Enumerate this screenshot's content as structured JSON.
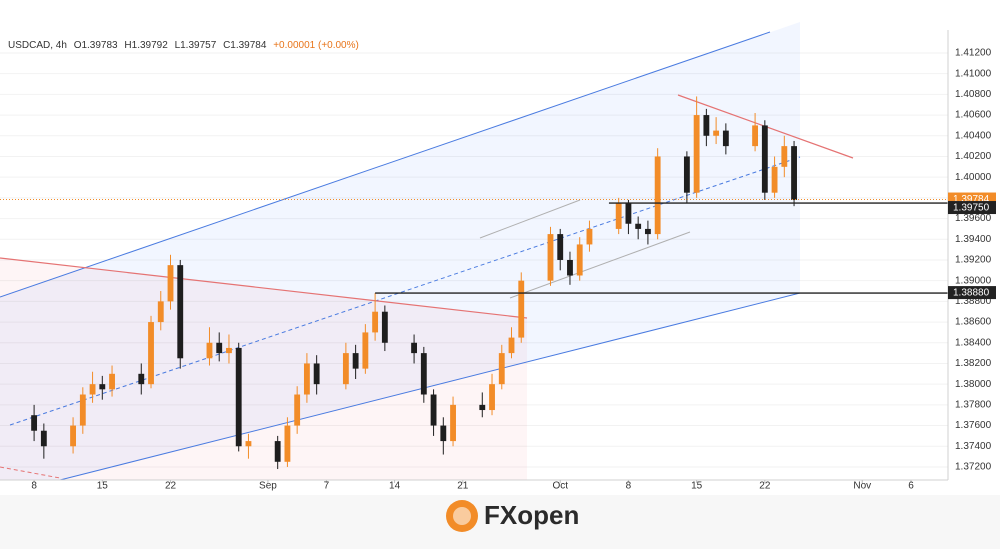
{
  "chart_data": {
    "type": "candlestick",
    "header": {
      "symbol": "USDCAD, 4h",
      "open": "O1.39783",
      "high": "H1.39792",
      "low": "L1.39757",
      "close": "C1.39784",
      "change": "+0.00001 (+0.00%)"
    },
    "x": [
      0,
      1,
      4,
      5,
      6,
      7,
      8,
      11,
      12,
      13,
      14,
      15,
      18,
      19,
      20,
      21,
      22,
      25,
      26,
      27,
      28,
      29,
      32,
      33,
      34,
      35,
      36,
      39,
      40,
      41,
      42,
      43,
      46,
      47,
      48,
      49,
      50,
      53,
      54,
      55,
      56,
      57,
      60,
      61,
      62,
      63,
      64,
      67,
      68,
      69,
      70,
      71,
      74,
      75,
      76,
      77,
      78
    ],
    "open": [
      1.377,
      1.3755,
      1.374,
      1.376,
      1.379,
      1.38,
      1.3795,
      1.381,
      1.38,
      1.386,
      1.388,
      1.3915,
      1.3825,
      1.384,
      1.383,
      1.3835,
      1.374,
      1.3745,
      1.3725,
      1.376,
      1.379,
      1.382,
      1.38,
      1.383,
      1.3815,
      1.385,
      1.387,
      1.384,
      1.383,
      1.379,
      1.376,
      1.3745,
      1.378,
      1.3775,
      1.38,
      1.383,
      1.3845,
      1.39,
      1.3945,
      1.392,
      1.3905,
      1.3935,
      1.395,
      1.3975,
      1.3955,
      1.395,
      1.3945,
      1.402,
      1.3985,
      1.406,
      1.404,
      1.4045,
      1.403,
      1.405,
      1.3985,
      1.401,
      1.403
    ],
    "high": [
      1.378,
      1.3762,
      1.3768,
      1.3797,
      1.3812,
      1.3808,
      1.3818,
      1.382,
      1.3866,
      1.389,
      1.3925,
      1.392,
      1.3855,
      1.385,
      1.3848,
      1.384,
      1.3752,
      1.375,
      1.3768,
      1.3798,
      1.383,
      1.3828,
      1.384,
      1.3838,
      1.3858,
      1.3888,
      1.3876,
      1.3848,
      1.3836,
      1.3795,
      1.3768,
      1.3788,
      1.3792,
      1.381,
      1.3838,
      1.3855,
      1.3908,
      1.3952,
      1.395,
      1.3928,
      1.3942,
      1.3958,
      1.398,
      1.3978,
      1.3962,
      1.3958,
      1.4028,
      1.4025,
      1.4078,
      1.4066,
      1.4058,
      1.4052,
      1.4062,
      1.4055,
      1.402,
      1.404,
      1.4035
    ],
    "low": [
      1.3745,
      1.3728,
      1.3733,
      1.3752,
      1.3782,
      1.3785,
      1.3788,
      1.379,
      1.3796,
      1.3852,
      1.3872,
      1.3815,
      1.3818,
      1.3822,
      1.382,
      1.3735,
      1.3728,
      1.3718,
      1.372,
      1.3752,
      1.3782,
      1.379,
      1.3795,
      1.3805,
      1.381,
      1.3842,
      1.3832,
      1.382,
      1.3782,
      1.375,
      1.3732,
      1.374,
      1.3768,
      1.377,
      1.3795,
      1.3825,
      1.384,
      1.3895,
      1.391,
      1.3896,
      1.39,
      1.3928,
      1.3945,
      1.3945,
      1.394,
      1.3935,
      1.394,
      1.3975,
      1.398,
      1.403,
      1.4032,
      1.4022,
      1.4025,
      1.3978,
      1.398,
      1.4,
      1.3972
    ],
    "close": [
      1.3755,
      1.374,
      1.376,
      1.379,
      1.38,
      1.3795,
      1.381,
      1.38,
      1.386,
      1.388,
      1.3915,
      1.3825,
      1.384,
      1.383,
      1.3835,
      1.374,
      1.3745,
      1.3725,
      1.376,
      1.379,
      1.382,
      1.38,
      1.383,
      1.3815,
      1.385,
      1.387,
      1.384,
      1.383,
      1.379,
      1.376,
      1.3745,
      1.378,
      1.3775,
      1.38,
      1.383,
      1.3845,
      1.39,
      1.3945,
      1.392,
      1.3905,
      1.3935,
      1.395,
      1.3975,
      1.3955,
      1.395,
      1.3945,
      1.402,
      1.3985,
      1.406,
      1.404,
      1.4045,
      1.403,
      1.405,
      1.3985,
      1.401,
      1.403,
      1.3978
    ],
    "up_color": "#f28c28",
    "down_color": "#1e1e1e",
    "xlim": [
      -3.5,
      93.8
    ],
    "xticks": [
      {
        "value": 0,
        "label": "8"
      },
      {
        "value": 7,
        "label": "15"
      },
      {
        "value": 14,
        "label": "22"
      },
      {
        "value": 24,
        "label": "Sep"
      },
      {
        "value": 30,
        "label": "7"
      },
      {
        "value": 37,
        "label": "14"
      },
      {
        "value": 44,
        "label": "21"
      },
      {
        "value": 54,
        "label": "Oct"
      },
      {
        "value": 61,
        "label": "8"
      },
      {
        "value": 68,
        "label": "15"
      },
      {
        "value": 75,
        "label": "22"
      },
      {
        "value": 85,
        "label": "Nov"
      },
      {
        "value": 90,
        "label": "6"
      }
    ],
    "ylim": [
      1.37074,
      1.41422
    ],
    "yticks": [
      {
        "value": 1.372,
        "label": "1.37200"
      },
      {
        "value": 1.374,
        "label": "1.37400"
      },
      {
        "value": 1.376,
        "label": "1.37600"
      },
      {
        "value": 1.378,
        "label": "1.37800"
      },
      {
        "value": 1.38,
        "label": "1.38000"
      },
      {
        "value": 1.382,
        "label": "1.38200"
      },
      {
        "value": 1.384,
        "label": "1.38400"
      },
      {
        "value": 1.386,
        "label": "1.38600"
      },
      {
        "value": 1.388,
        "label": "1.38800"
      },
      {
        "value": 1.39,
        "label": "1.39000"
      },
      {
        "value": 1.392,
        "label": "1.39200"
      },
      {
        "value": 1.394,
        "label": "1.39400"
      },
      {
        "value": 1.396,
        "label": "1.39600"
      },
      {
        "value": 1.398,
        "label": "1.39800"
      },
      {
        "value": 1.4,
        "label": "1.40000"
      },
      {
        "value": 1.402,
        "label": "1.40200"
      },
      {
        "value": 1.404,
        "label": "1.40400"
      },
      {
        "value": 1.406,
        "label": "1.40600"
      },
      {
        "value": 1.408,
        "label": "1.40800"
      },
      {
        "value": 1.41,
        "label": "1.41000"
      },
      {
        "value": 1.412,
        "label": "1.41200"
      }
    ],
    "grid": true,
    "last_price": {
      "value": 1.39784,
      "label": "1.39784",
      "color": "#f28c28"
    },
    "levels": [
      {
        "value": 1.3975,
        "label": "1.39750",
        "start": 59
      },
      {
        "value": 1.3888,
        "label": "1.38880",
        "start": 35
      }
    ]
  },
  "brand": "FXopen"
}
